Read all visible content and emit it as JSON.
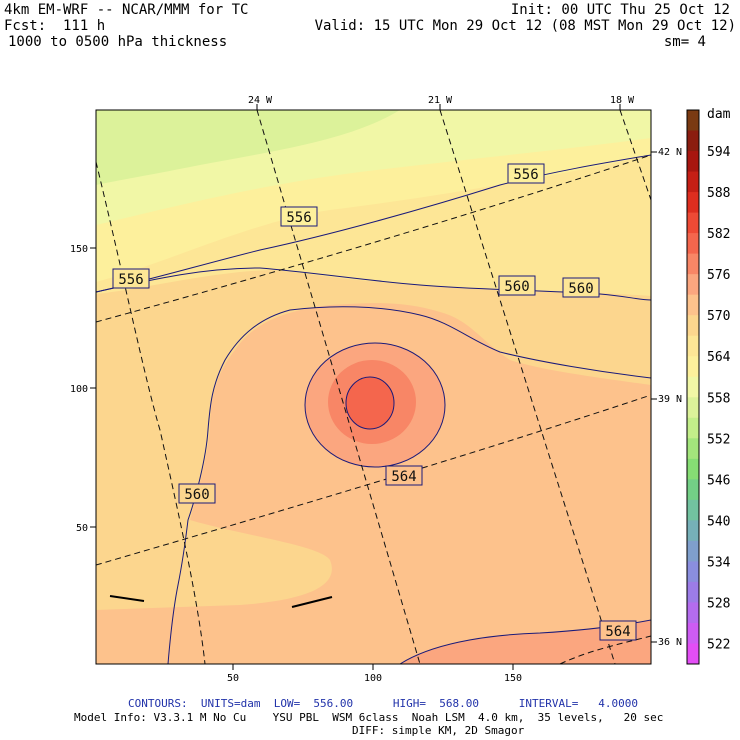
{
  "header": {
    "model": "4km EM-WRF -- NCAR/MMM for TC",
    "forecast": "Fcst:  111 h",
    "field": "1000 to 0500 hPa thickness",
    "init": "Init: 00 UTC Thu 25 Oct 12",
    "valid": "Valid: 15 UTC Mon 29 Oct 12 (08 MST Mon 29 Oct 12)",
    "smoothing": "sm= 4"
  },
  "map": {
    "longitude_labels": [
      "24 W",
      "21 W",
      "18 W"
    ],
    "latitude_labels": [
      "42 N",
      "39 N",
      "36 N"
    ],
    "x_ticks": [
      "50",
      "100",
      "150"
    ],
    "y_ticks": [
      "150",
      "100",
      "50"
    ],
    "contour_labels": [
      "556",
      "556",
      "556",
      "560",
      "560",
      "560",
      "564",
      "564"
    ]
  },
  "colorbar": {
    "unit": "dam",
    "levels": [
      "594",
      "588",
      "582",
      "576",
      "570",
      "564",
      "558",
      "552",
      "546",
      "540",
      "534",
      "528",
      "522"
    ],
    "colors": [
      "#7a3a12",
      "#8b1d10",
      "#a81610",
      "#c51f15",
      "#de2e1f",
      "#ee4a35",
      "#f4664d",
      "#f88666",
      "#fba67f",
      "#fdc28c",
      "#fcd68e",
      "#fde696",
      "#fdf09c",
      "#f1f7a6",
      "#dcf29a",
      "#c3ee8a",
      "#a3e57c",
      "#86dd74",
      "#73cf86",
      "#72c2a0",
      "#76b0b8",
      "#7f9fcc",
      "#8a8ede",
      "#9c7ce7",
      "#b46cee",
      "#cd5cf3",
      "#e34ef5"
    ]
  },
  "footer": {
    "contours": "CONTOURS:  UNITS=dam  LOW=  556.00      HIGH=  568.00      INTERVAL=   4.0000",
    "model_info": "Model Info: V3.3.1 M No Cu    YSU PBL  WSM 6class  Noah LSM  4.0 km,  35 levels,   20 sec",
    "model_info2": "DIFF: simple KM, 2D Smagor"
  }
}
